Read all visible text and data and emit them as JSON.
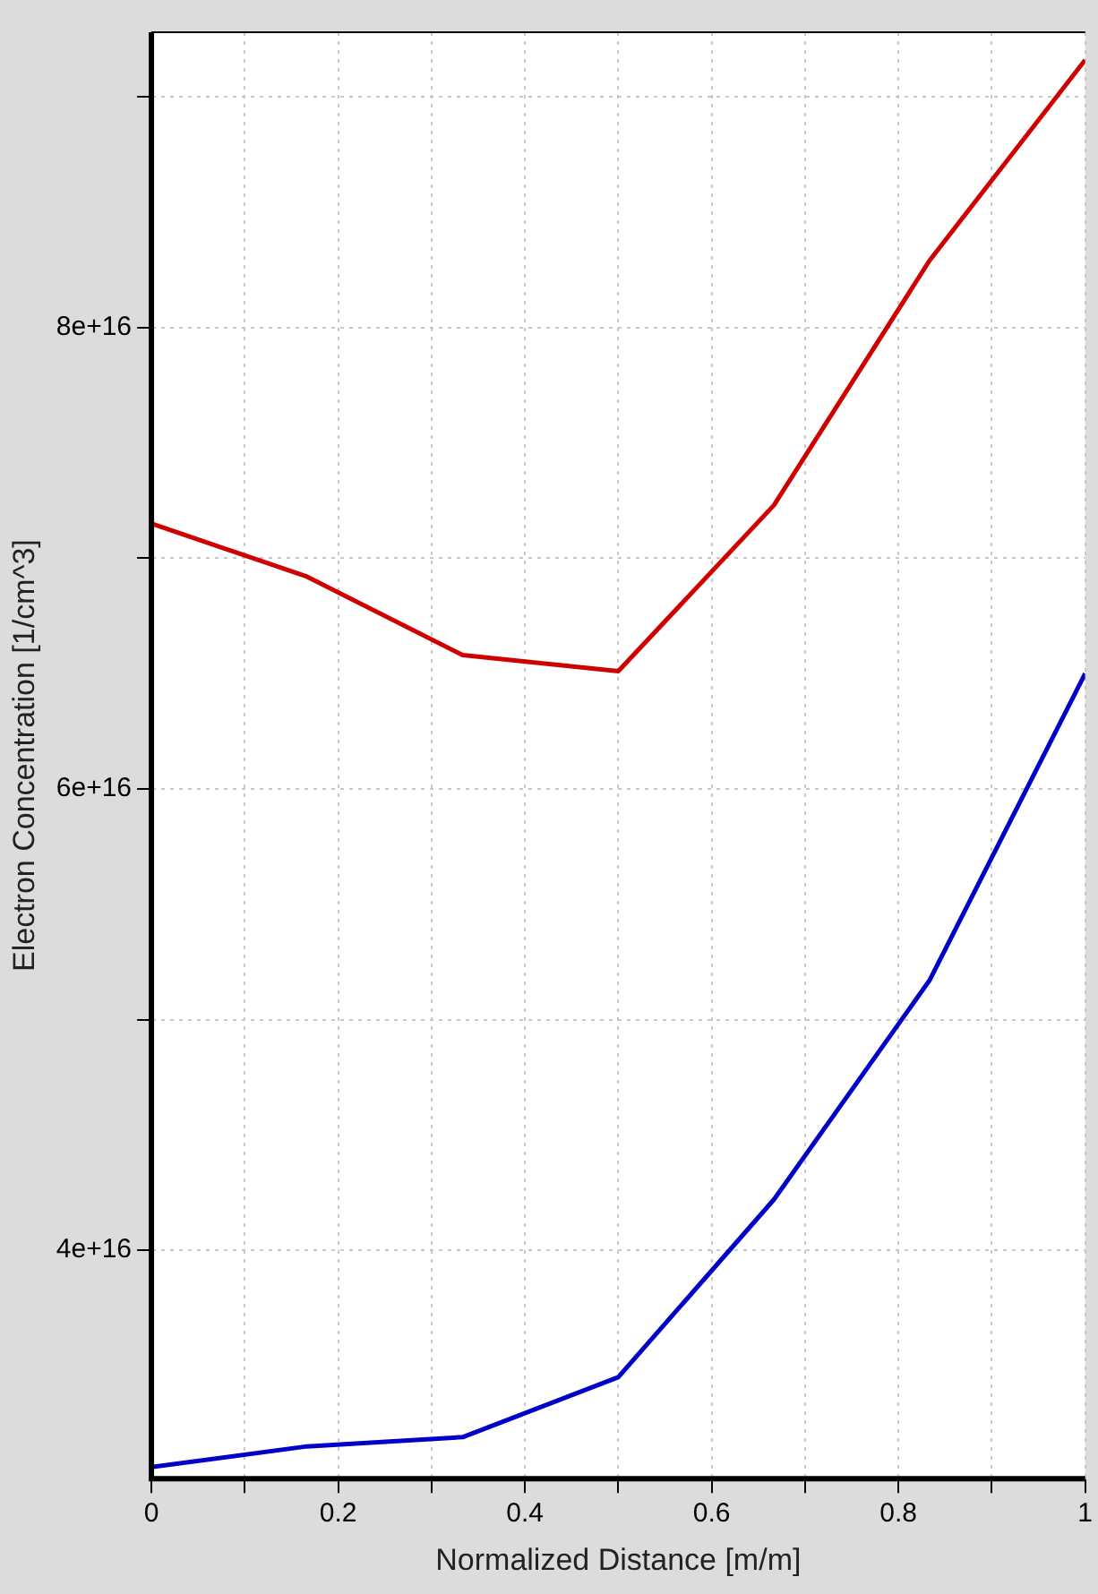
{
  "chart_data": {
    "type": "line",
    "xlabel": "Normalized Distance [m/m]",
    "ylabel": "Electron Concentration [1/cm^3]",
    "x": [
      0,
      0.1667,
      0.3333,
      0.5,
      0.6667,
      0.8333,
      1
    ],
    "series": [
      {
        "color": "#d00000",
        "values": [
          7.15e+16,
          6.92e+16,
          6.58e+16,
          6.51e+16,
          7.23e+16,
          8.29e+16,
          9.16e+16
        ]
      },
      {
        "color": "#0000c8",
        "values": [
          3.06e+16,
          3.15e+16,
          3.19e+16,
          3.45e+16,
          4.22e+16,
          5.17e+16,
          6.5e+16
        ]
      }
    ],
    "xlim": [
      0,
      1
    ],
    "xticks": [
      0,
      {
        "value": 0.1,
        "label": null
      },
      0.2,
      {
        "value": 0.3,
        "label": null
      },
      0.4,
      {
        "value": 0.5,
        "label": null
      },
      0.6,
      {
        "value": 0.7,
        "label": null
      },
      0.8,
      {
        "value": 0.9,
        "label": null
      },
      1
    ],
    "ylim": [
      3.01e+16,
      9.28e+16
    ],
    "yticks": [
      {
        "value": 4e+16,
        "label": "4e+16"
      },
      {
        "value": 5e+16,
        "label": null
      },
      {
        "value": 6e+16,
        "label": "6e+16"
      },
      {
        "value": 7e+16,
        "label": null
      },
      {
        "value": 8e+16,
        "label": "8e+16"
      },
      {
        "value": 9e+16,
        "label": null
      }
    ],
    "grid": true,
    "legend": false,
    "marker": "none",
    "line_style": "solid"
  }
}
